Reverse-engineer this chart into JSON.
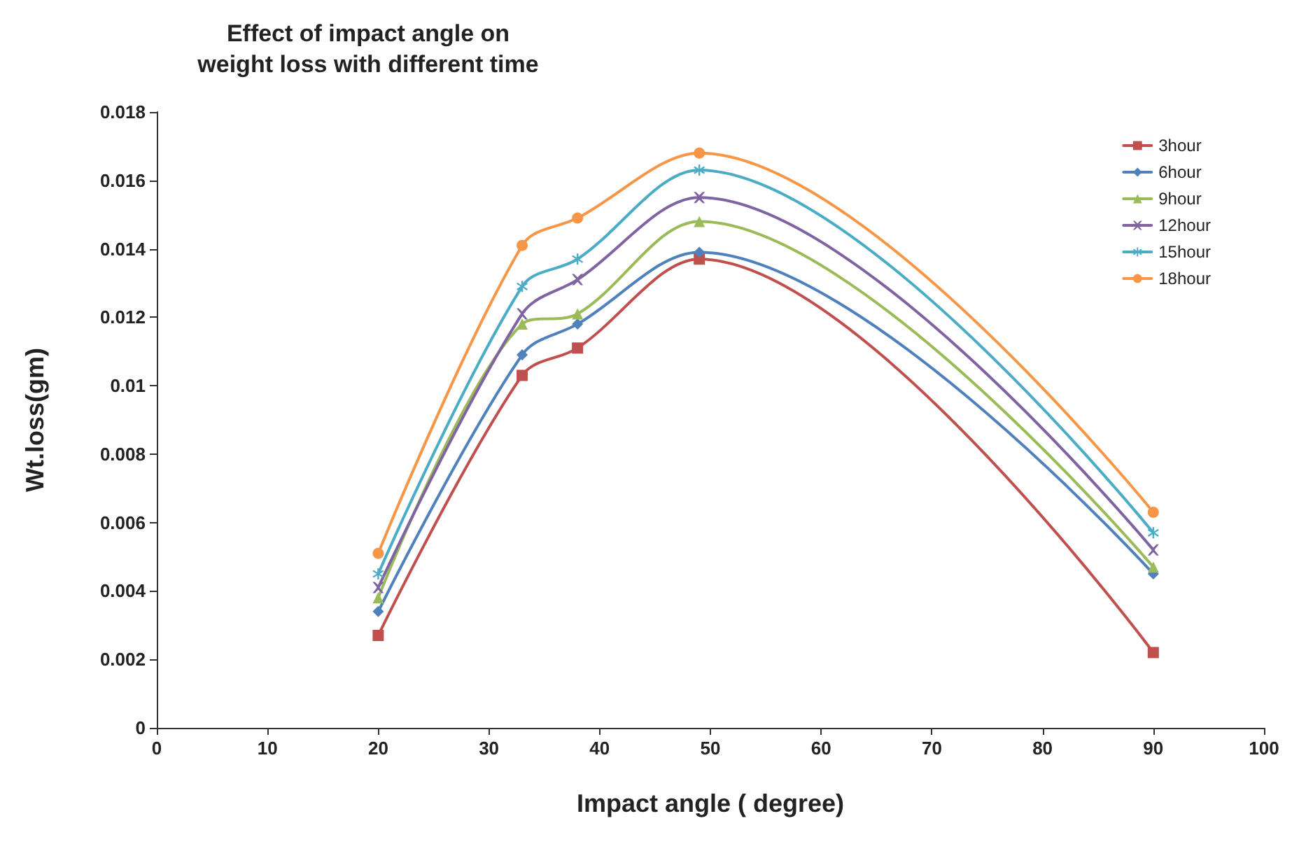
{
  "chart_data": {
    "type": "line",
    "title": "Effect of impact angle on\nweight loss with different time",
    "xlabel": "Impact angle ( degree)",
    "ylabel": "Wt.loss(gm)",
    "x": [
      20,
      33,
      38,
      49,
      90
    ],
    "series": [
      {
        "name": "3hour",
        "color": "#c0504d",
        "marker": "square",
        "values": [
          0.0027,
          0.0103,
          0.0111,
          0.0137,
          0.0022
        ]
      },
      {
        "name": "6hour",
        "color": "#4f81bd",
        "marker": "diamond",
        "values": [
          0.0034,
          0.0109,
          0.0118,
          0.0139,
          0.0045
        ]
      },
      {
        "name": "9hour",
        "color": "#9bbb59",
        "marker": "triangle",
        "values": [
          0.0038,
          0.0118,
          0.0121,
          0.0148,
          0.0047
        ]
      },
      {
        "name": "12hour",
        "color": "#8064a2",
        "marker": "cross",
        "values": [
          0.0041,
          0.0121,
          0.0131,
          0.0155,
          0.0052
        ]
      },
      {
        "name": "15hour",
        "color": "#4bacc6",
        "marker": "star",
        "values": [
          0.0045,
          0.0129,
          0.0137,
          0.0163,
          0.0057
        ]
      },
      {
        "name": "18hour",
        "color": "#f79646",
        "marker": "circle",
        "values": [
          0.0051,
          0.0141,
          0.0149,
          0.0168,
          0.0063
        ]
      }
    ],
    "xlim": [
      0,
      100
    ],
    "xticks": [
      0,
      10,
      20,
      30,
      40,
      50,
      60,
      70,
      80,
      90,
      100
    ],
    "ylim": [
      0,
      0.018
    ],
    "yticks": [
      0,
      0.002,
      0.004,
      0.006,
      0.008,
      0.01,
      0.012,
      0.014,
      0.016,
      0.018
    ],
    "grid": false,
    "legend": "top right",
    "line_style": "solid"
  }
}
